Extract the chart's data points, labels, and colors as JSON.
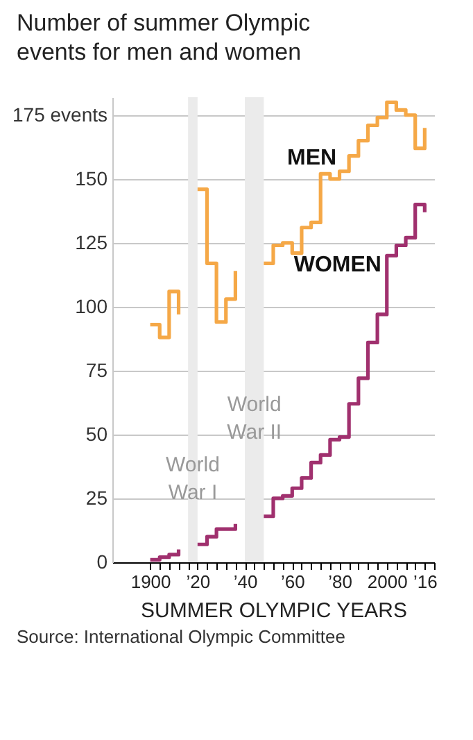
{
  "chart_data": {
    "type": "step",
    "title": "Number of summer Olympic events for men and women",
    "xlabel": "SUMMER OLYMPIC YEARS",
    "annotations": [
      "Source: International Olympic Committee"
    ],
    "x": [
      1900,
      1904,
      1908,
      1912,
      1916,
      1920,
      1924,
      1928,
      1932,
      1936,
      1940,
      1944,
      1948,
      1952,
      1956,
      1960,
      1964,
      1968,
      1972,
      1976,
      1980,
      1984,
      1988,
      1992,
      1996,
      2000,
      2004,
      2008,
      2012,
      2016
    ],
    "series": [
      {
        "name": "MEN",
        "color": "#f5a847",
        "values": [
          93,
          88,
          106,
          97,
          null,
          146,
          117,
          94,
          103,
          114,
          null,
          null,
          117,
          124,
          125,
          121,
          131,
          133,
          152,
          150,
          153,
          159,
          165,
          171,
          174,
          180,
          177,
          175,
          162,
          170
        ]
      },
      {
        "name": "WOMEN",
        "color": "#a0306e",
        "values": [
          1,
          2,
          3,
          5,
          null,
          7,
          10,
          13,
          13,
          15,
          null,
          null,
          18,
          25,
          26,
          29,
          33,
          39,
          42,
          48,
          49,
          62,
          72,
          86,
          97,
          120,
          124,
          127,
          140,
          137
        ]
      }
    ],
    "xlim": [
      1884,
      2020
    ],
    "ylim": [
      0,
      182
    ],
    "xticks": [
      1900,
      {
        "value": 1904,
        "label": null
      },
      {
        "value": 1908,
        "label": null
      },
      {
        "value": 1912,
        "label": null
      },
      {
        "value": 1916,
        "label": null
      },
      {
        "value": 1920,
        "label": "’20"
      },
      {
        "value": 1924,
        "label": null
      },
      {
        "value": 1928,
        "label": null
      },
      {
        "value": 1932,
        "label": null
      },
      {
        "value": 1936,
        "label": null
      },
      {
        "value": 1940,
        "label": "’40"
      },
      {
        "value": 1944,
        "label": null
      },
      {
        "value": 1948,
        "label": null
      },
      {
        "value": 1952,
        "label": null
      },
      {
        "value": 1956,
        "label": null
      },
      {
        "value": 1960,
        "label": "’60"
      },
      {
        "value": 1964,
        "label": null
      },
      {
        "value": 1968,
        "label": null
      },
      {
        "value": 1972,
        "label": null
      },
      {
        "value": 1976,
        "label": null
      },
      {
        "value": 1980,
        "label": "’80"
      },
      {
        "value": 1984,
        "label": null
      },
      {
        "value": 1988,
        "label": null
      },
      {
        "value": 1992,
        "label": null
      },
      {
        "value": 1996,
        "label": null
      },
      2000,
      {
        "value": 2004,
        "label": null
      },
      {
        "value": 2008,
        "label": null
      },
      {
        "value": 2012,
        "label": null
      },
      {
        "value": 2016,
        "label": "’16"
      },
      {
        "value": 2020,
        "label": null
      }
    ],
    "yticks": [
      0,
      25,
      50,
      75,
      100,
      125,
      150,
      {
        "value": 175,
        "label": "175 events"
      }
    ],
    "bands": [
      {
        "axis": "x",
        "from": 1916,
        "to": 1920,
        "label": "World War I",
        "color": "#ebebeb"
      },
      {
        "axis": "x",
        "from": 1940,
        "to": 1948,
        "label": "World War II",
        "color": "#ebebeb"
      }
    ],
    "grid": "y",
    "legend": false,
    "line_style": "solid",
    "marker": "none"
  }
}
